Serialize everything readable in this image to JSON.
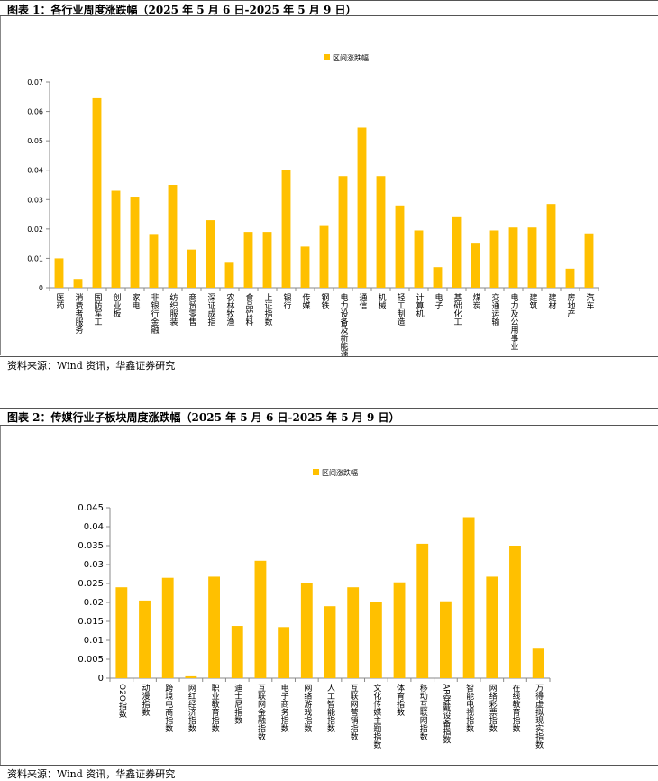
{
  "charts": [
    {
      "title": "图表 1：各行业周度涨跌幅（2025 年 5 月 6 日-2025 年 5 月 9 日）",
      "source": "资料来源：Wind 资讯，华鑫证券研究"
    },
    {
      "title": "图表 2：传媒行业子板块周度涨跌幅（2025 年 5 月 6 日-2025 年 5 月 9 日）",
      "source": "资料来源：Wind 资讯，华鑫证券研究"
    }
  ],
  "colors": {
    "bar": "#FFC000",
    "axis": "#888888",
    "text": "#000000"
  },
  "chart_data": [
    {
      "type": "bar",
      "title": "",
      "xlabel": "",
      "ylabel": "",
      "legend": {
        "label": "区间涨跌幅",
        "placement": "top-center"
      },
      "ylim": [
        0,
        0.07
      ],
      "yticks": [
        "0",
        "0.01",
        "0.02",
        "0.03",
        "0.04",
        "0.05",
        "0.06",
        "0.07"
      ],
      "grid": false,
      "series": [
        {
          "name": "区间涨跌幅",
          "values": [
            0.01,
            0.003,
            0.0645,
            0.033,
            0.031,
            0.018,
            0.035,
            0.013,
            0.023,
            0.0085,
            0.019,
            0.019,
            0.04,
            0.014,
            0.021,
            0.038,
            0.0545,
            0.038,
            0.028,
            0.0195,
            0.007,
            0.024,
            0.015,
            0.0195,
            0.0205,
            0.0205,
            0.0285,
            0.0065,
            0.0185
          ]
        }
      ],
      "categories": [
        "医药",
        "消费者服务",
        "国防军工",
        "创业板",
        "家电",
        "非银行金融",
        "纺织服装",
        "商贸零售",
        "深证成指",
        "农林牧渔",
        "食品饮料",
        "上证指数",
        "银行",
        "传媒",
        "钢铁",
        "电力设备及新能源",
        "通信",
        "机械",
        "轻工制造",
        "计算机",
        "电子",
        "基础化工",
        "煤炭",
        "交通运输",
        "电力及公用事业",
        "建筑",
        "建材",
        "房地产",
        "汽车"
      ]
    },
    {
      "type": "bar",
      "title": "",
      "xlabel": "",
      "ylabel": "",
      "legend": {
        "label": "区间涨跌幅",
        "placement": "top-center"
      },
      "ylim": [
        0,
        0.045
      ],
      "yticks": [
        "0",
        "0.005",
        "0.01",
        "0.015",
        "0.02",
        "0.025",
        "0.03",
        "0.035",
        "0.04",
        "0.045"
      ],
      "grid": false,
      "series": [
        {
          "name": "区间涨跌幅",
          "values": [
            0.024,
            0.0205,
            0.0265,
            0.0005,
            0.0268,
            0.0138,
            0.031,
            0.0135,
            0.025,
            0.019,
            0.024,
            0.02,
            0.0253,
            0.0355,
            0.0203,
            0.0425,
            0.0268,
            0.035,
            0.0078
          ]
        }
      ],
      "categories": [
        "O2O指数",
        "动漫指数",
        "跨境电商指数",
        "网红经济指数",
        "职业教育指数",
        "迪士尼指数",
        "互联网金融指数",
        "电子商务指数",
        "网络游戏指数",
        "人工智能指数",
        "互联网营销指数",
        "文化传媒主题指数",
        "体育指数",
        "移动互联网指数",
        "AR穿戴设备指数",
        "智能电视指数",
        "网络彩票指数",
        "在线教育指数",
        "万得虚拟现实指数"
      ]
    }
  ]
}
